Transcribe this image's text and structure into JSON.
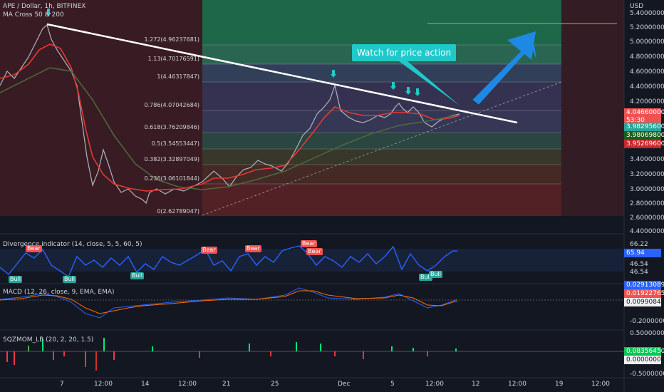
{
  "header": {
    "symbol_line": "APE / Dollar, 1h, BITFINEX",
    "indicator_line": "MA Cross 50 & 200",
    "currency": "USD"
  },
  "fib_levels": [
    {
      "label": "1.272(4.96237681)"
    },
    {
      "label": "1.13(4.70176591)"
    },
    {
      "label": "1(4.46317847)"
    },
    {
      "label": "0.786(4.07042684)"
    },
    {
      "label": "0.618(3.76209846)"
    },
    {
      "label": "0.5(3.54553447)"
    },
    {
      "label": "0.382(3.32897049)"
    },
    {
      "label": "0.236(3.06101844)"
    },
    {
      "label": "0(2.62789047)"
    }
  ],
  "callout": "Watch for price action",
  "price_axis": [
    "5.40000000",
    "5.20000000",
    "5.00000000",
    "4.80000000",
    "4.60000000",
    "4.40000000",
    "4.20000000",
    "3.40000000",
    "3.20000000",
    "3.00000000",
    "2.80000000",
    "2.60000000",
    "4.40000000"
  ],
  "price_badges": [
    {
      "text": "4.04660000",
      "sub": "53:30",
      "color": "#ef5350"
    },
    {
      "text": "3.98295600",
      "color": "#26a69a"
    },
    {
      "text": "3.98069800",
      "color": "#1b5e20"
    },
    {
      "text": "3.95269600",
      "color": "#c62828"
    }
  ],
  "divergence": {
    "title": "Divergence indicator (14, close, 5, 5, 60, 5)",
    "axis": [
      "66.22",
      "65.94",
      "46.54",
      "46.54"
    ],
    "bear_label": "Bear",
    "bull_label": "Bull"
  },
  "macd": {
    "title": "MACD (12, 26, close, 9, EMA, EMA)",
    "axis": [
      "0.02913089",
      "0.01922765",
      "0.00990842",
      "-0.20000000"
    ]
  },
  "sqzmom": {
    "title": "SQZMOM_LB (20, 2, 20, 1.5)",
    "axis": [
      "0.50000000",
      "0.08356450",
      "0.00000000",
      "-0.50000000"
    ]
  },
  "time_axis": [
    "7",
    "12:00",
    "14",
    "12:00",
    "21",
    "25",
    "Dec",
    "5",
    "12:00",
    "12",
    "12:00",
    "19",
    "12:00"
  ]
}
